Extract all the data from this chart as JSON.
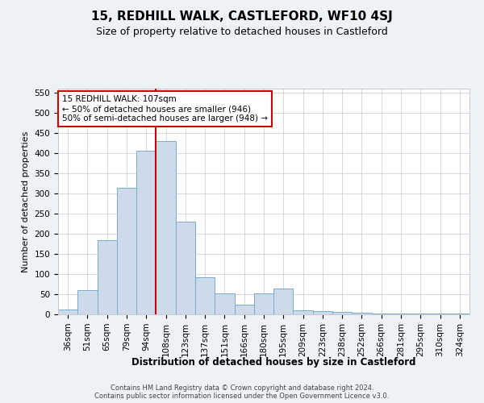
{
  "title": "15, REDHILL WALK, CASTLEFORD, WF10 4SJ",
  "subtitle": "Size of property relative to detached houses in Castleford",
  "xlabel": "Distribution of detached houses by size in Castleford",
  "ylabel": "Number of detached properties",
  "bar_color": "#ccdaea",
  "bar_edge_color": "#7aabcc",
  "categories": [
    "36sqm",
    "51sqm",
    "65sqm",
    "79sqm",
    "94sqm",
    "108sqm",
    "123sqm",
    "137sqm",
    "151sqm",
    "166sqm",
    "180sqm",
    "195sqm",
    "209sqm",
    "223sqm",
    "238sqm",
    "252sqm",
    "266sqm",
    "281sqm",
    "295sqm",
    "310sqm",
    "324sqm"
  ],
  "values": [
    12,
    60,
    185,
    315,
    407,
    430,
    230,
    93,
    53,
    25,
    53,
    65,
    10,
    8,
    6,
    4,
    3,
    3,
    3,
    3,
    3
  ],
  "vline_index": 5,
  "vline_color": "#cc0000",
  "annotation_text": "15 REDHILL WALK: 107sqm\n← 50% of detached houses are smaller (946)\n50% of semi-detached houses are larger (948) →",
  "annotation_box_color": "#ffffff",
  "annotation_box_edge_color": "#cc0000",
  "ylim": [
    0,
    560
  ],
  "yticks": [
    0,
    50,
    100,
    150,
    200,
    250,
    300,
    350,
    400,
    450,
    500,
    550
  ],
  "footer1": "Contains HM Land Registry data © Crown copyright and database right 2024.",
  "footer2": "Contains public sector information licensed under the Open Government Licence v3.0.",
  "background_color": "#eef2f7",
  "plot_background_color": "#ffffff",
  "grid_color": "#c8c8d0",
  "title_fontsize": 11,
  "subtitle_fontsize": 9,
  "xlabel_fontsize": 8.5,
  "ylabel_fontsize": 8,
  "tick_fontsize": 7.5,
  "footer_fontsize": 6,
  "annotation_fontsize": 7.5
}
